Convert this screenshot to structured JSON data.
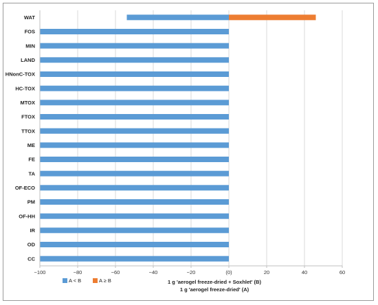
{
  "chart_data": {
    "type": "bar",
    "orientation": "horizontal",
    "categories": [
      "WAT",
      "FOS",
      "MIN",
      "LAND",
      "HNonC-TOX",
      "HC-TOX",
      "MTOX",
      "FTOX",
      "TTOX",
      "ME",
      "FE",
      "TA",
      "OF-ECO",
      "PM",
      "OF-HH",
      "IR",
      "OD",
      "CC"
    ],
    "series": [
      {
        "name": "A < B",
        "color": "#5b9bd5",
        "values": [
          -54,
          -100,
          -100,
          -100,
          -100,
          -100,
          -100,
          -100,
          -100,
          -100,
          -100,
          -100,
          -100,
          -100,
          -100,
          -100,
          -100,
          -100
        ]
      },
      {
        "name": "A ≥ B",
        "color": "#ed7d31",
        "values": [
          46,
          0,
          0,
          0,
          0,
          0,
          0,
          0,
          0,
          0,
          0,
          0,
          0,
          0,
          0,
          0,
          0,
          0
        ]
      }
    ],
    "xlim": [
      -100,
      60
    ],
    "xticks": [
      -100,
      -80,
      -60,
      -40,
      -20,
      0,
      20,
      40,
      60
    ],
    "xtick_labels": [
      "−100",
      "−80",
      "−60",
      "−40",
      "−20",
      "(0)",
      "20",
      "40",
      "60"
    ],
    "xlabel_line1": "1 g 'aerogel freeze-dried + Soxhlet' (B)",
    "xlabel_line2": "1 g 'aerogel freeze-dried' (A)",
    "legend_position": "bottom-left",
    "grid": true
  }
}
